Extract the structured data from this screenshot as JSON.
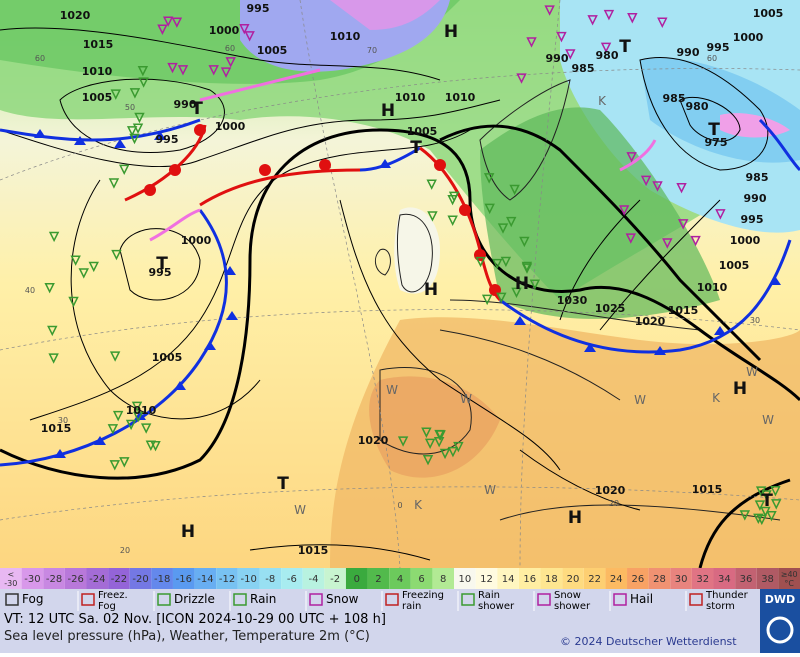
{
  "map": {
    "isobar_labels": [
      "1020",
      "995",
      "1000",
      "1005",
      "1010",
      "1015",
      "1010",
      "1005",
      "990",
      "995",
      "1000",
      "1010",
      "1010",
      "1005",
      "1000",
      "995",
      "1005",
      "1010",
      "1015",
      "1020",
      "1030",
      "1025",
      "1020",
      "1015",
      "1010",
      "1005",
      "1000",
      "995",
      "990",
      "985",
      "975",
      "980",
      "985",
      "990",
      "995",
      "1000",
      "1005",
      "980",
      "985",
      "990",
      "1020",
      "1015",
      "1015"
    ],
    "isotherm_labels": [
      "60",
      "50",
      "40",
      "30",
      "20",
      "70",
      "60",
      "0",
      "20",
      "30",
      "60"
    ],
    "pressure_centers": [
      "H",
      "T",
      "H",
      "T",
      "T",
      "T",
      "H",
      "H",
      "T",
      "H",
      "T",
      "H",
      "H",
      "T"
    ],
    "airmass_labels": [
      "W",
      "W",
      "W",
      "W",
      "W",
      "W",
      "W",
      "K",
      "K",
      "K"
    ]
  },
  "temperature_scale": {
    "low_end": {
      "top": "<",
      "bottom": "-30",
      "color": "#e8b8f2"
    },
    "cells": [
      {
        "label": "-30",
        "color": "#d898ea"
      },
      {
        "label": "-28",
        "color": "#c888e2"
      },
      {
        "label": "-26",
        "color": "#b878da"
      },
      {
        "label": "-24",
        "color": "#a46cd6"
      },
      {
        "label": "-22",
        "color": "#9464d8"
      },
      {
        "label": "-20",
        "color": "#7478e4"
      },
      {
        "label": "-18",
        "color": "#6488ec"
      },
      {
        "label": "-16",
        "color": "#5a9af0"
      },
      {
        "label": "-14",
        "color": "#68aef2"
      },
      {
        "label": "-12",
        "color": "#78c2f2"
      },
      {
        "label": "-10",
        "color": "#88d2f2"
      },
      {
        "label": "-8",
        "color": "#98e0f2"
      },
      {
        "label": "-6",
        "color": "#a8ecf0"
      },
      {
        "label": "-4",
        "color": "#b8f2e0"
      },
      {
        "label": "-2",
        "color": "#c8f4d0"
      },
      {
        "label": "0",
        "color": "#3aaa3e"
      },
      {
        "label": "2",
        "color": "#52ba4c"
      },
      {
        "label": "4",
        "color": "#6cca5c"
      },
      {
        "label": "6",
        "color": "#8cda72"
      },
      {
        "label": "8",
        "color": "#b2ea94"
      },
      {
        "label": "10",
        "color": "#f8f8ee"
      },
      {
        "label": "12",
        "color": "#fffbe0"
      },
      {
        "label": "14",
        "color": "#fff6c0"
      },
      {
        "label": "16",
        "color": "#ffeea2"
      },
      {
        "label": "18",
        "color": "#fee690"
      },
      {
        "label": "20",
        "color": "#fedb80"
      },
      {
        "label": "22",
        "color": "#fdcf72"
      },
      {
        "label": "24",
        "color": "#fcba62"
      },
      {
        "label": "26",
        "color": "#f8a264"
      },
      {
        "label": "28",
        "color": "#f09272"
      },
      {
        "label": "30",
        "color": "#e8847e"
      },
      {
        "label": "32",
        "color": "#e07484"
      },
      {
        "label": "34",
        "color": "#d86a82"
      },
      {
        "label": "36",
        "color": "#c26272"
      },
      {
        "label": "38",
        "color": "#b05a64"
      }
    ],
    "high_end": {
      "top": "≥40",
      "bottom": "°C",
      "color": "#a05050"
    }
  },
  "legend": [
    {
      "lines": [
        "Fog"
      ]
    },
    {
      "lines": [
        "Freez.",
        "Fog"
      ]
    },
    {
      "lines": [
        "Drizzle"
      ]
    },
    {
      "lines": [
        "Rain"
      ]
    },
    {
      "lines": [
        "Snow"
      ]
    },
    {
      "lines": [
        "Freezing",
        "rain"
      ]
    },
    {
      "lines": [
        "Rain",
        "shower"
      ]
    },
    {
      "lines": [
        "Snow",
        "shower"
      ]
    },
    {
      "lines": [
        "Hail"
      ]
    },
    {
      "lines": [
        "Thunder",
        "storm"
      ]
    }
  ],
  "footer": {
    "valid_time": "VT: 12 UTC Sa.  02 Nov. [ICON 2024-10-29  00 UTC + 108 h]",
    "description": "Sea level pressure (hPa), Weather, Temperature 2m (°C)",
    "copyright": "© 2024 Deutscher Wetterdienst",
    "logo": "DWD"
  }
}
